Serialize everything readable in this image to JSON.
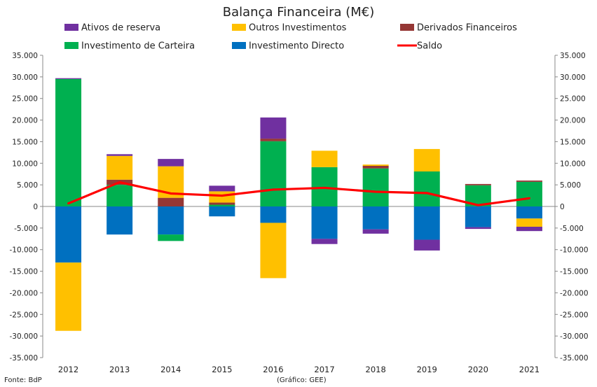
{
  "chart_data": {
    "type": "bar",
    "stacked": true,
    "title": "Balança Financeira (M€)",
    "categories": [
      "2012",
      "2013",
      "2014",
      "2015",
      "2016",
      "2017",
      "2018",
      "2019",
      "2020",
      "2021"
    ],
    "ylim": [
      -35000,
      35000
    ],
    "ytick_labels": [
      "35.000",
      "30.000",
      "25.000",
      "20.000",
      "15.000",
      "10.000",
      "5.000",
      "0",
      "-5.000",
      "-10.000",
      "-15.000",
      "-20.000",
      "-25.000",
      "-30.000",
      "-35.000"
    ],
    "grid": false,
    "series": [
      {
        "name": "Investimento Directo",
        "color": "#0070C0",
        "values": [
          -13000,
          -6500,
          -6500,
          -2300,
          -3800,
          -7500,
          -5300,
          -7700,
          -4800,
          -2800
        ]
      },
      {
        "name": "Investimento de Carteira",
        "color": "#00B050",
        "values": [
          29500,
          5000,
          -1500,
          400,
          15100,
          9100,
          8800,
          8100,
          4900,
          5700
        ]
      },
      {
        "name": "Derivados Financeiros",
        "color": "#953735",
        "values": [
          0,
          1200,
          2000,
          500,
          600,
          0,
          600,
          0,
          300,
          300
        ]
      },
      {
        "name": "Outros Investimentos",
        "color": "#FFC000",
        "values": [
          -15800,
          5500,
          7300,
          2600,
          -12800,
          3800,
          300,
          5200,
          0,
          -1900
        ]
      },
      {
        "name": "Ativos de reserva",
        "color": "#7030A0",
        "values": [
          200,
          400,
          1700,
          1300,
          4900,
          -1200,
          -1000,
          -2500,
          -400,
          -1000
        ]
      }
    ],
    "line": {
      "name": "Saldo",
      "color": "#FF0000",
      "values": [
        700,
        5600,
        3000,
        2500,
        3900,
        4300,
        3400,
        3100,
        300,
        1900
      ]
    },
    "legend_order": [
      "Ativos de reserva",
      "Outros Investimentos",
      "Derivados Financeiros",
      "Investimento de Carteira",
      "Investimento Directo",
      "Saldo"
    ],
    "legend_position": "top"
  },
  "footer": {
    "source": "Fonte: BdP",
    "credit": "(Gráfico: GEE)"
  }
}
